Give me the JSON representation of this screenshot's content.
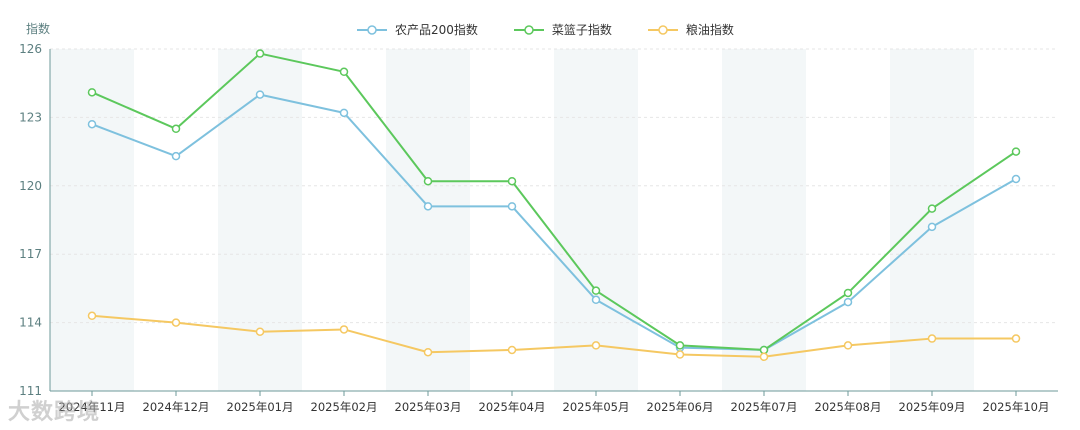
{
  "chart_data": {
    "type": "line",
    "title": "",
    "xlabel": "",
    "ylabel": "指数",
    "ylim": [
      111,
      126
    ],
    "yticks": [
      111,
      114,
      117,
      120,
      123,
      126
    ],
    "grid": true,
    "legend_position": "top-center",
    "categories": [
      "2024年11月",
      "2024年12月",
      "2025年01月",
      "2025年02月",
      "2025年03月",
      "2025年04月",
      "2025年05月",
      "2025年06月",
      "2025年07月",
      "2025年08月",
      "2025年09月",
      "2025年10月"
    ],
    "series": [
      {
        "name": "农产品200指数",
        "color": "#7ec1de",
        "values": [
          122.7,
          121.3,
          124.0,
          123.2,
          119.1,
          119.1,
          115.0,
          112.9,
          112.8,
          114.9,
          118.2,
          120.3
        ]
      },
      {
        "name": "菜篮子指数",
        "color": "#5cc85c",
        "values": [
          124.1,
          122.5,
          125.8,
          125.0,
          120.2,
          120.2,
          115.4,
          113.0,
          112.8,
          115.3,
          119.0,
          121.5
        ]
      },
      {
        "name": "粮油指数",
        "color": "#f5c862",
        "values": [
          114.3,
          114.0,
          113.6,
          113.7,
          112.7,
          112.8,
          113.0,
          112.6,
          112.5,
          113.0,
          113.3,
          113.3
        ]
      }
    ]
  },
  "watermark": "大数跨境",
  "colors": {
    "axis": "#6e9a9a",
    "tick_label": "#5c7f80",
    "band": "#f3f7f8",
    "grid": "#e6e6e6"
  }
}
